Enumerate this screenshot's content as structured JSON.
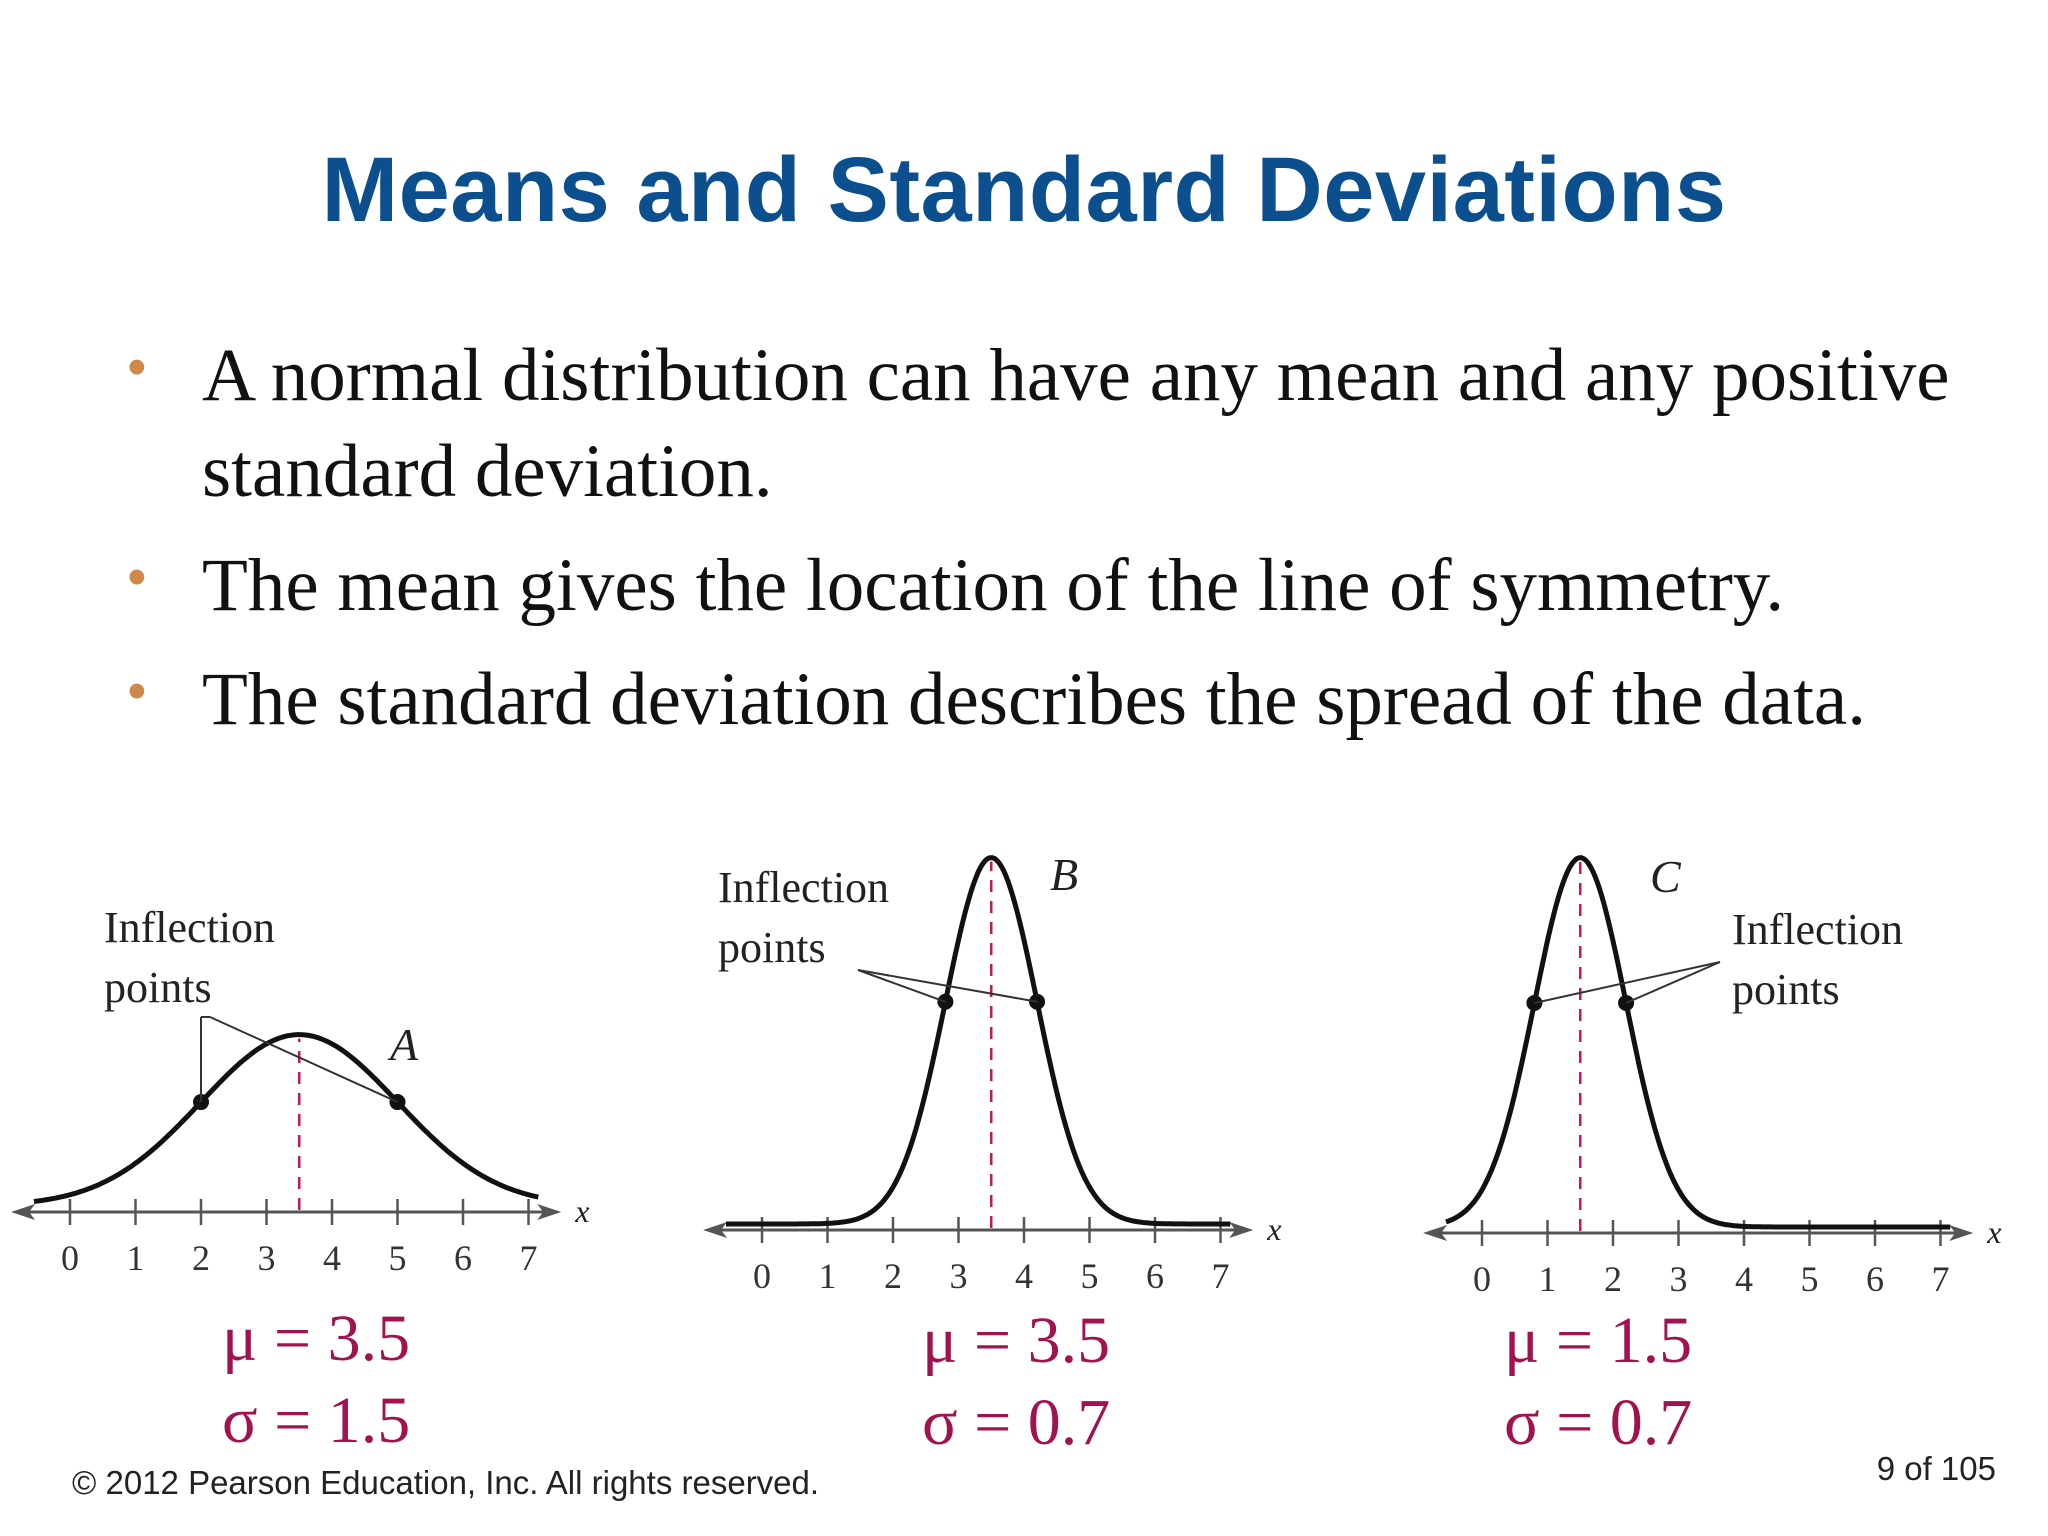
{
  "slide": {
    "title": "Means and Standard Deviations",
    "bullets": [
      "A normal distribution can have any mean and any positive standard deviation.",
      "The mean gives the location of the line of symmetry.",
      "The standard deviation describes the spread of the data."
    ],
    "footer": {
      "copyright": "© 2012 Pearson Education, Inc. All rights reserved.",
      "page": "9 of 105"
    },
    "colors": {
      "title": "#0b4f8f",
      "bullet": "#d0884a",
      "params": "#a1124f",
      "mean_line": "#c0185a"
    }
  },
  "chart_data": [
    {
      "type": "line",
      "label": "A",
      "annotation": "Inflection points",
      "annotation_lines": [
        "Inflection",
        "points"
      ],
      "mean": 3.5,
      "sd": 1.5,
      "mean_text": "μ = 3.5",
      "sd_text": "σ = 1.5",
      "xlabel": "x",
      "ticks": [
        0,
        1,
        2,
        3,
        4,
        5,
        6,
        7
      ],
      "xlim": [
        -0.9,
        7.5
      ],
      "inflection_points": [
        2,
        5
      ]
    },
    {
      "type": "line",
      "label": "B",
      "annotation": "Inflection points",
      "annotation_lines": [
        "Inflection",
        "points"
      ],
      "mean": 3.5,
      "sd": 0.7,
      "mean_text": "μ = 3.5",
      "sd_text": "σ = 0.7",
      "xlabel": "x",
      "ticks": [
        0,
        1,
        2,
        3,
        4,
        5,
        6,
        7
      ],
      "xlim": [
        -0.9,
        7.5
      ],
      "inflection_points": [
        2.8,
        4.2
      ]
    },
    {
      "type": "line",
      "label": "C",
      "annotation": "Inflection points",
      "annotation_lines": [
        "Inflection",
        "points"
      ],
      "mean": 1.5,
      "sd": 0.7,
      "mean_text": "μ = 1.5",
      "sd_text": "σ = 0.7",
      "xlabel": "x",
      "ticks": [
        0,
        1,
        2,
        3,
        4,
        5,
        6,
        7
      ],
      "xlim": [
        -0.9,
        7.5
      ],
      "inflection_points": [
        0.8,
        2.2
      ]
    }
  ]
}
